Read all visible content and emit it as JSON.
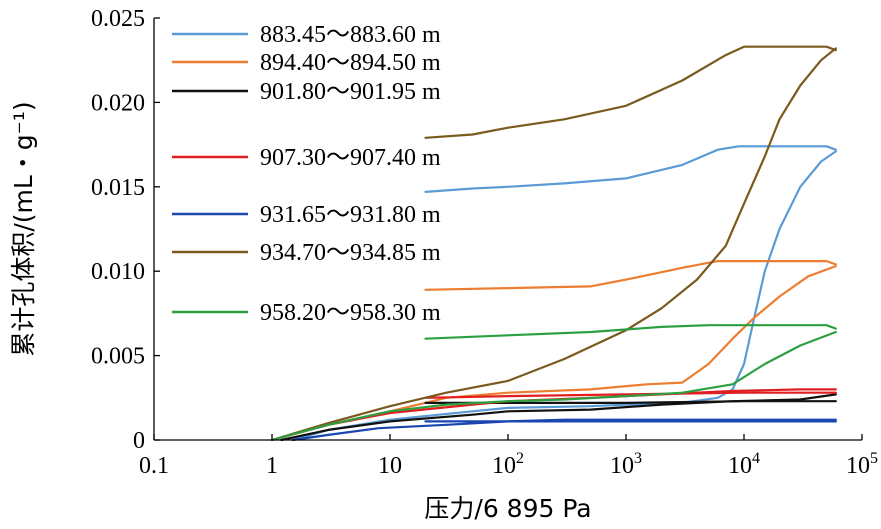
{
  "chart_data": {
    "type": "line",
    "xscale": "log",
    "xlabel": "压力/6 895 Pa",
    "ylabel": "累计孔体积/(mL・g⁻¹)",
    "xlim": [
      0.1,
      100000
    ],
    "ylim": [
      0,
      0.025
    ],
    "x_ticks": [
      {
        "value": 0.1,
        "label": "0.1",
        "sup": ""
      },
      {
        "value": 1,
        "label": "1",
        "sup": ""
      },
      {
        "value": 10,
        "label": "10",
        "sup": ""
      },
      {
        "value": 100,
        "label": "10",
        "sup": "2"
      },
      {
        "value": 1000,
        "label": "10",
        "sup": "3"
      },
      {
        "value": 10000,
        "label": "10",
        "sup": "4"
      },
      {
        "value": 100000,
        "label": "10",
        "sup": "5"
      }
    ],
    "y_ticks": [
      {
        "value": 0,
        "label": "0"
      },
      {
        "value": 0.005,
        "label": "0.005"
      },
      {
        "value": 0.01,
        "label": "0.010"
      },
      {
        "value": 0.015,
        "label": "0.015"
      },
      {
        "value": 0.02,
        "label": "0.020"
      },
      {
        "value": 0.025,
        "label": "0.025"
      }
    ],
    "series": [
      {
        "name": "883.45～883.60 m",
        "color": "#5b9bd5",
        "intrusion": [
          [
            1.5,
            0.0
          ],
          [
            3,
            0.0006
          ],
          [
            10,
            0.0012
          ],
          [
            50,
            0.0017
          ],
          [
            100,
            0.0019
          ],
          [
            500,
            0.002
          ],
          [
            1000,
            0.0021
          ],
          [
            3000,
            0.0022
          ],
          [
            6000,
            0.0025
          ],
          [
            8000,
            0.003
          ],
          [
            10000,
            0.0045
          ],
          [
            12000,
            0.007
          ],
          [
            15000,
            0.01
          ],
          [
            20000,
            0.0125
          ],
          [
            30000,
            0.015
          ],
          [
            45000,
            0.0165
          ],
          [
            60000,
            0.0171
          ]
        ],
        "extrusion": [
          [
            20,
            0.0147
          ],
          [
            50,
            0.0149
          ],
          [
            100,
            0.015
          ],
          [
            300,
            0.0152
          ],
          [
            1000,
            0.0155
          ],
          [
            3000,
            0.0163
          ],
          [
            6000,
            0.0172
          ],
          [
            9000,
            0.0174
          ],
          [
            20000,
            0.0174
          ],
          [
            50000,
            0.0174
          ],
          [
            60000,
            0.0172
          ]
        ]
      },
      {
        "name": "894.40～894.50 m",
        "color": "#ed7d31",
        "intrusion": [
          [
            1,
            0.0
          ],
          [
            3,
            0.0009
          ],
          [
            10,
            0.0017
          ],
          [
            30,
            0.0025
          ],
          [
            100,
            0.0028
          ],
          [
            500,
            0.003
          ],
          [
            1500,
            0.0033
          ],
          [
            3000,
            0.0034
          ],
          [
            5000,
            0.0045
          ],
          [
            8000,
            0.006
          ],
          [
            12000,
            0.0072
          ],
          [
            20000,
            0.0085
          ],
          [
            35000,
            0.0097
          ],
          [
            60000,
            0.0103
          ]
        ],
        "extrusion": [
          [
            20,
            0.0089
          ],
          [
            100,
            0.009
          ],
          [
            500,
            0.0091
          ],
          [
            1000,
            0.0095
          ],
          [
            3000,
            0.0102
          ],
          [
            6000,
            0.0106
          ],
          [
            20000,
            0.0106
          ],
          [
            50000,
            0.0106
          ],
          [
            60000,
            0.0104
          ]
        ]
      },
      {
        "name": "901.80～901.95 m",
        "color": "#111111",
        "intrusion": [
          [
            1.2,
            0.0
          ],
          [
            3,
            0.0006
          ],
          [
            10,
            0.0011
          ],
          [
            50,
            0.0015
          ],
          [
            100,
            0.0017
          ],
          [
            500,
            0.0018
          ],
          [
            2000,
            0.0021
          ],
          [
            8000,
            0.0023
          ],
          [
            30000,
            0.0024
          ],
          [
            60000,
            0.0027
          ]
        ],
        "extrusion": [
          [
            20,
            0.0022
          ],
          [
            100,
            0.0022
          ],
          [
            1000,
            0.0022
          ],
          [
            10000,
            0.0023
          ],
          [
            40000,
            0.0023
          ],
          [
            60000,
            0.0023
          ]
        ]
      },
      {
        "name": "907.30～907.40 m",
        "color": "#e02020",
        "intrusion": [
          [
            1,
            0.0
          ],
          [
            3,
            0.0009
          ],
          [
            10,
            0.0016
          ],
          [
            50,
            0.0021
          ],
          [
            100,
            0.0023
          ],
          [
            500,
            0.0025
          ],
          [
            2000,
            0.0027
          ],
          [
            8000,
            0.0029
          ],
          [
            30000,
            0.003
          ],
          [
            60000,
            0.003
          ]
        ],
        "extrusion": [
          [
            20,
            0.0025
          ],
          [
            100,
            0.0026
          ],
          [
            1000,
            0.0027
          ],
          [
            10000,
            0.0028
          ],
          [
            40000,
            0.0028
          ],
          [
            60000,
            0.0028
          ]
        ]
      },
      {
        "name": "931.65～931.80 m",
        "color": "#1a46b0",
        "intrusion": [
          [
            1.5,
            0.0
          ],
          [
            3,
            0.0003
          ],
          [
            8,
            0.0007
          ],
          [
            30,
            0.0009
          ],
          [
            100,
            0.0011
          ],
          [
            300,
            0.0012
          ],
          [
            1000,
            0.0012
          ],
          [
            10000,
            0.0012
          ],
          [
            60000,
            0.0012
          ]
        ],
        "extrusion": [
          [
            20,
            0.0011
          ],
          [
            100,
            0.0011
          ],
          [
            1000,
            0.0011
          ],
          [
            10000,
            0.0011
          ],
          [
            60000,
            0.0011
          ]
        ]
      },
      {
        "name": "934.70～934.85 m",
        "color": "#7a5a1e",
        "intrusion": [
          [
            1,
            0.0
          ],
          [
            3,
            0.001
          ],
          [
            10,
            0.002
          ],
          [
            30,
            0.0028
          ],
          [
            100,
            0.0035
          ],
          [
            300,
            0.0048
          ],
          [
            1000,
            0.0065
          ],
          [
            2000,
            0.0078
          ],
          [
            4000,
            0.0095
          ],
          [
            7000,
            0.0115
          ],
          [
            10000,
            0.014
          ],
          [
            15000,
            0.0168
          ],
          [
            20000,
            0.019
          ],
          [
            30000,
            0.021
          ],
          [
            45000,
            0.0225
          ],
          [
            60000,
            0.0232
          ]
        ],
        "extrusion": [
          [
            20,
            0.0179
          ],
          [
            50,
            0.0181
          ],
          [
            100,
            0.0185
          ],
          [
            300,
            0.019
          ],
          [
            1000,
            0.0198
          ],
          [
            3000,
            0.0213
          ],
          [
            7000,
            0.0228
          ],
          [
            10000,
            0.0233
          ],
          [
            30000,
            0.0233
          ],
          [
            50000,
            0.0233
          ],
          [
            60000,
            0.0231
          ]
        ]
      },
      {
        "name": "958.20～958.30 m",
        "color": "#2ca040",
        "intrusion": [
          [
            1,
            0.0
          ],
          [
            3,
            0.0009
          ],
          [
            10,
            0.0017
          ],
          [
            30,
            0.0021
          ],
          [
            100,
            0.0023
          ],
          [
            300,
            0.0024
          ],
          [
            1000,
            0.0026
          ],
          [
            3000,
            0.0028
          ],
          [
            8000,
            0.0033
          ],
          [
            15000,
            0.0045
          ],
          [
            30000,
            0.0056
          ],
          [
            60000,
            0.0064
          ]
        ],
        "extrusion": [
          [
            20,
            0.006
          ],
          [
            100,
            0.0062
          ],
          [
            500,
            0.0064
          ],
          [
            2000,
            0.0067
          ],
          [
            5000,
            0.0068
          ],
          [
            20000,
            0.0068
          ],
          [
            50000,
            0.0068
          ],
          [
            60000,
            0.0066
          ]
        ]
      }
    ]
  }
}
